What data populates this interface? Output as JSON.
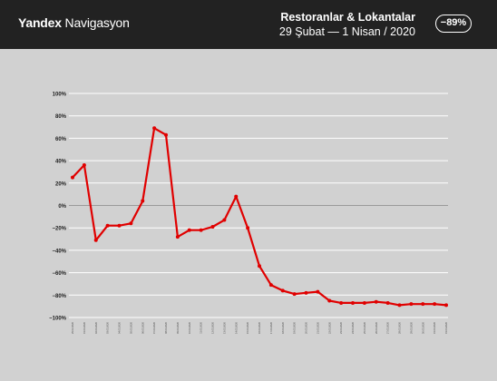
{
  "header": {
    "brand_bold": "Yandex",
    "brand_light": "Navigasyon",
    "title": "Restoranlar & Lokantalar",
    "date_range": "29 Şubat  —  1 Nisan / 2020",
    "badge": "−89%"
  },
  "colors": {
    "header_bg": "#222222",
    "plot_bg": "#d1d1d1",
    "line": "#e00000",
    "grid": "#ffffff",
    "zero_line": "#9a9a9a"
  },
  "chart_data": {
    "type": "line",
    "title": "",
    "xlabel": "",
    "ylabel": "",
    "ylim": [
      -100,
      100
    ],
    "yticks": [
      "100%",
      "80%",
      "60%",
      "40%",
      "20%",
      "0%",
      "−20%",
      "−40%",
      "−60%",
      "−80%",
      "−100%"
    ],
    "grid": true,
    "categories": [
      "29.02.2020",
      "01.03.2020",
      "02.03.2020",
      "03.03.2020",
      "04.03.2020",
      "05.03.2020",
      "06.03.2020",
      "07.03.2020",
      "08.03.2020",
      "09.03.2020",
      "10.03.2020",
      "11.03.2020",
      "12.03.2020",
      "13.03.2020",
      "14.03.2020",
      "15.03.2020",
      "16.03.2020",
      "17.03.2020",
      "18.03.2020",
      "19.03.2020",
      "20.03.2020",
      "21.03.2020",
      "22.03.2020",
      "23.03.2020",
      "24.03.2020",
      "25.03.2020",
      "26.03.2020",
      "27.03.2020",
      "28.03.2020",
      "29.03.2020",
      "30.03.2020",
      "31.03.2020",
      "01.04.2020"
    ],
    "series": [
      {
        "values": [
          25,
          36,
          -31,
          -18,
          -18,
          -16,
          4,
          69,
          63,
          -28,
          -22,
          -22,
          -19,
          -13,
          8,
          -20,
          -54,
          -71,
          -76,
          -79,
          -78,
          -77,
          -85,
          -87,
          -87,
          -87,
          -86,
          -87,
          -89,
          -88,
          -88,
          -88,
          -89
        ]
      }
    ]
  }
}
